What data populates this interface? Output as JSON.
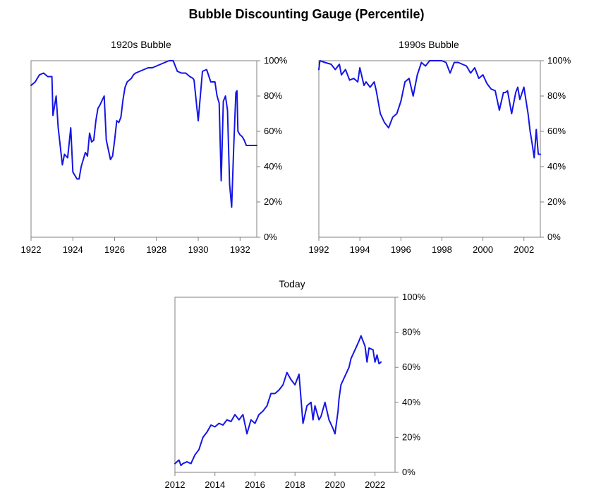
{
  "title": "Bubble Discounting Gauge (Percentile)",
  "line_color": "#1515e6",
  "chart_data": [
    {
      "type": "line",
      "title": "1920s Bubble",
      "xlim": [
        1922,
        1932.8
      ],
      "ylim": [
        0,
        100
      ],
      "xticks": [
        1922,
        1924,
        1926,
        1928,
        1930,
        1932
      ],
      "yticks": [
        "0%",
        "20%",
        "40%",
        "60%",
        "80%",
        "100%"
      ],
      "series": [
        {
          "x": [
            1922.0,
            1922.2,
            1922.4,
            1922.6,
            1922.8,
            1923.0,
            1923.05,
            1923.2,
            1923.3,
            1923.5,
            1923.6,
            1923.75,
            1923.9,
            1924.0,
            1924.05,
            1924.2,
            1924.3,
            1924.4,
            1924.6,
            1924.7,
            1924.8,
            1924.9,
            1925.0,
            1925.1,
            1925.2,
            1925.3,
            1925.5,
            1925.6,
            1925.8,
            1925.9,
            1926.0,
            1926.1,
            1926.2,
            1926.3,
            1926.4,
            1926.5,
            1926.6,
            1926.7,
            1926.8,
            1926.9,
            1927.0,
            1927.2,
            1927.4,
            1927.6,
            1927.8,
            1928.0,
            1928.2,
            1928.4,
            1928.6,
            1928.8,
            1929.0,
            1929.2,
            1929.4,
            1929.6,
            1929.75,
            1929.8,
            1930.0,
            1930.2,
            1930.4,
            1930.6,
            1930.8,
            1930.9,
            1931.0,
            1931.1,
            1931.2,
            1931.3,
            1931.4,
            1931.5,
            1931.6,
            1931.7,
            1931.8,
            1931.85,
            1931.9,
            1932.0,
            1932.1,
            1932.2,
            1932.3,
            1932.4,
            1932.5,
            1932.55,
            1932.6,
            1932.65,
            1932.7,
            1932.8
          ],
          "y": [
            86,
            88,
            92,
            93,
            91,
            91,
            69,
            80,
            62,
            41,
            47,
            45,
            62,
            37,
            36,
            33,
            33,
            40,
            48,
            46,
            59,
            54,
            55,
            66,
            73,
            75,
            80,
            55,
            44,
            46,
            55,
            66,
            65,
            68,
            78,
            85,
            88,
            89,
            90,
            92,
            93,
            94,
            95,
            96,
            96,
            97,
            98,
            99,
            100,
            100,
            94,
            93,
            93,
            91,
            90,
            89,
            66,
            94,
            95,
            88,
            88,
            80,
            76,
            32,
            77,
            80,
            72,
            30,
            17,
            52,
            82,
            83,
            60,
            58,
            57,
            55,
            52,
            52,
            52,
            52,
            52,
            52,
            52,
            52
          ]
        }
      ]
    },
    {
      "type": "line",
      "title": "1990s Bubble",
      "xlim": [
        1992,
        2002.8
      ],
      "ylim": [
        0,
        100
      ],
      "xticks": [
        1992,
        1994,
        1996,
        1998,
        2000,
        2002
      ],
      "yticks": [
        "0%",
        "20%",
        "40%",
        "60%",
        "80%",
        "100%"
      ],
      "series": [
        {
          "x": [
            1992.0,
            1992.05,
            1992.3,
            1992.6,
            1992.8,
            1993.0,
            1993.1,
            1993.3,
            1993.5,
            1993.7,
            1993.9,
            1994.0,
            1994.2,
            1994.3,
            1994.5,
            1994.7,
            1994.8,
            1995.0,
            1995.2,
            1995.4,
            1995.6,
            1995.8,
            1996.0,
            1996.2,
            1996.4,
            1996.6,
            1996.8,
            1997.0,
            1997.2,
            1997.4,
            1997.6,
            1997.8,
            1998.0,
            1998.2,
            1998.4,
            1998.6,
            1998.8,
            1999.0,
            1999.2,
            1999.4,
            1999.6,
            1999.8,
            2000.0,
            2000.2,
            2000.4,
            2000.6,
            2000.8,
            2001.0,
            2001.1,
            2001.2,
            2001.4,
            2001.6,
            2001.7,
            2001.8,
            2002.0,
            2002.2,
            2002.3,
            2002.4,
            2002.5,
            2002.6,
            2002.7,
            2002.8
          ],
          "y": [
            95,
            100,
            99,
            98,
            95,
            98,
            92,
            95,
            89,
            90,
            88,
            96,
            86,
            88,
            85,
            88,
            83,
            70,
            65,
            62,
            68,
            70,
            77,
            88,
            90,
            80,
            92,
            99,
            97,
            100,
            100,
            100,
            100,
            99,
            93,
            99,
            99,
            98,
            97,
            93,
            96,
            90,
            92,
            87,
            84,
            83,
            72,
            82,
            82,
            83,
            70,
            82,
            85,
            78,
            85,
            70,
            60,
            53,
            45,
            61,
            47,
            47
          ]
        }
      ]
    },
    {
      "type": "line",
      "title": "Today",
      "xlim": [
        2012,
        2023
      ],
      "ylim": [
        0,
        100
      ],
      "xticks": [
        2012,
        2014,
        2016,
        2018,
        2020,
        2022
      ],
      "yticks": [
        "0%",
        "20%",
        "40%",
        "60%",
        "80%",
        "100%"
      ],
      "series": [
        {
          "x": [
            2012.0,
            2012.2,
            2012.3,
            2012.4,
            2012.6,
            2012.8,
            2013.0,
            2013.2,
            2013.4,
            2013.6,
            2013.8,
            2014.0,
            2014.2,
            2014.4,
            2014.6,
            2014.8,
            2015.0,
            2015.2,
            2015.4,
            2015.6,
            2015.8,
            2016.0,
            2016.2,
            2016.4,
            2016.6,
            2016.8,
            2017.0,
            2017.2,
            2017.4,
            2017.6,
            2017.8,
            2018.0,
            2018.2,
            2018.4,
            2018.6,
            2018.8,
            2018.9,
            2019.0,
            2019.2,
            2019.3,
            2019.5,
            2019.7,
            2019.9,
            2020.0,
            2020.15,
            2020.2,
            2020.3,
            2020.5,
            2020.7,
            2020.8,
            2021.0,
            2021.2,
            2021.3,
            2021.5,
            2021.6,
            2021.7,
            2021.9,
            2022.0,
            2022.1,
            2022.2,
            2022.3
          ],
          "y": [
            5,
            7,
            4,
            5,
            6,
            5,
            10,
            13,
            20,
            23,
            27,
            26,
            28,
            27,
            30,
            29,
            33,
            30,
            33,
            22,
            30,
            28,
            33,
            35,
            38,
            45,
            45,
            47,
            50,
            57,
            53,
            50,
            56,
            28,
            38,
            40,
            30,
            38,
            30,
            32,
            40,
            30,
            25,
            22,
            35,
            42,
            50,
            55,
            60,
            65,
            70,
            75,
            78,
            72,
            63,
            71,
            70,
            63,
            67,
            62,
            63
          ]
        }
      ]
    }
  ]
}
